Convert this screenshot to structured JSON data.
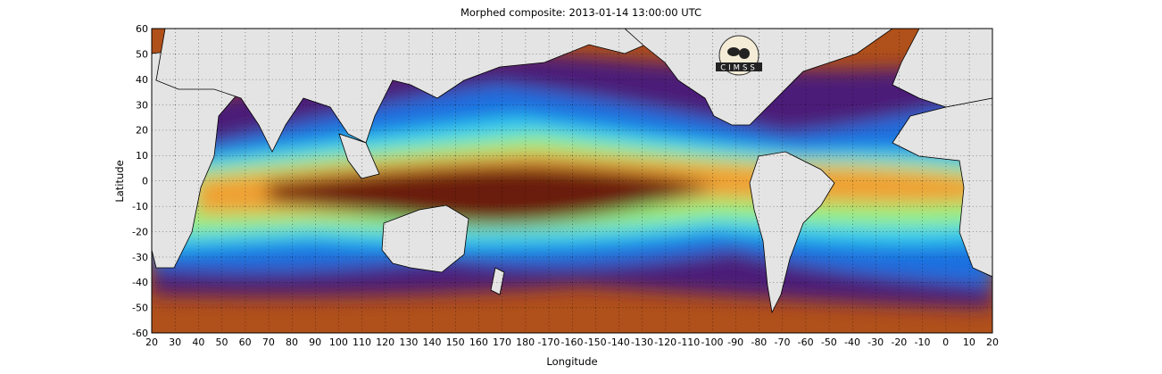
{
  "title": "Morphed composite: 2013-01-14 13:00:00 UTC",
  "xlabel": "Longitude",
  "ylabel": "Latitude",
  "logo_text": "CIMSS",
  "x_ticks": [
    "20",
    "30",
    "40",
    "50",
    "60",
    "70",
    "80",
    "90",
    "100",
    "110",
    "120",
    "130",
    "140",
    "150",
    "160",
    "170",
    "180",
    "-170",
    "-160",
    "-150",
    "-140",
    "-130",
    "-120",
    "-110",
    "-100",
    "-90",
    "-80",
    "-70",
    "-60",
    "-50",
    "-40",
    "-30",
    "-20",
    "-10",
    "0",
    "10",
    "20"
  ],
  "y_ticks": [
    "60",
    "50",
    "40",
    "30",
    "20",
    "10",
    "0",
    "-10",
    "-20",
    "-30",
    "-40",
    "-50",
    "-60"
  ],
  "colors": {
    "dry": "#4b1f78",
    "low": "#6b4fa8",
    "mid_low": "#1f6fe0",
    "mid": "#2fd0f0",
    "mid_high": "#9af07a",
    "high": "#f0a030",
    "very_high": "#b0501a",
    "peak": "#6a1a08",
    "land": "#e4e4e4"
  }
}
